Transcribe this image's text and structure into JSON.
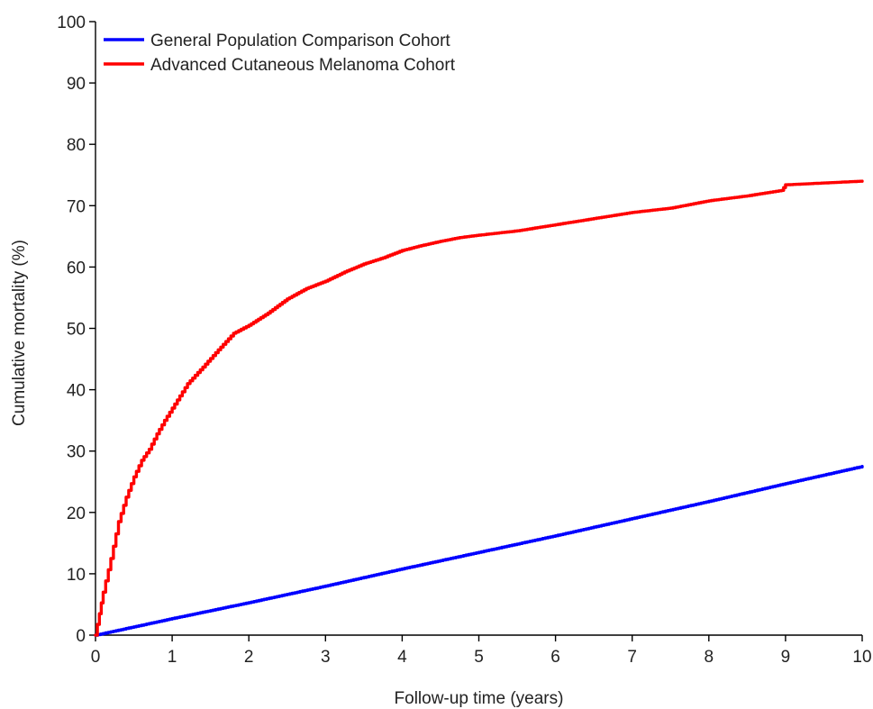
{
  "chart_data": {
    "type": "line",
    "title": "",
    "xlabel": "Follow-up time (years)",
    "ylabel": "Cumulative mortality (%)",
    "xlim": [
      0,
      10
    ],
    "ylim": [
      0,
      100
    ],
    "xticks": [
      "0",
      "1",
      "2",
      "3",
      "4",
      "5",
      "6",
      "7",
      "8",
      "9",
      "10"
    ],
    "yticks": [
      "0",
      "10",
      "20",
      "30",
      "40",
      "50",
      "60",
      "70",
      "80",
      "90",
      "100"
    ],
    "grid": false,
    "legend_position": "top-left",
    "series": [
      {
        "name": "General Population Comparison Cohort",
        "color": "#0000ff",
        "x": [
          0,
          1,
          2,
          3,
          4,
          5,
          6,
          7,
          8,
          9,
          10
        ],
        "y": [
          0,
          2.7,
          5.3,
          8.0,
          10.8,
          13.5,
          16.2,
          19.0,
          21.8,
          24.7,
          27.5
        ]
      },
      {
        "name": "Advanced Cutaneous Melanoma Cohort",
        "color": "#ff0000",
        "x": [
          0,
          0.05,
          0.1,
          0.2,
          0.3,
          0.4,
          0.5,
          0.6,
          0.7,
          0.8,
          0.9,
          1.0,
          1.2,
          1.4,
          1.6,
          1.8,
          2.0,
          2.25,
          2.5,
          2.75,
          3.0,
          3.25,
          3.5,
          3.75,
          4.0,
          4.25,
          4.5,
          4.75,
          5.0,
          5.5,
          6.0,
          6.5,
          7.0,
          7.5,
          8.0,
          8.5,
          8.8,
          8.95,
          9.0,
          9.5,
          10.0
        ],
        "y": [
          0,
          3.5,
          7.0,
          12.5,
          18.5,
          22.5,
          25.8,
          28.5,
          30.3,
          32.8,
          35.0,
          37.0,
          41.0,
          43.7,
          46.5,
          49.2,
          50.5,
          52.5,
          54.8,
          56.5,
          57.7,
          59.2,
          60.5,
          61.5,
          62.7,
          63.5,
          64.2,
          64.8,
          65.2,
          65.9,
          66.9,
          67.9,
          68.9,
          69.6,
          70.8,
          71.6,
          72.2,
          72.5,
          73.4,
          73.7,
          74.0
        ]
      }
    ]
  }
}
